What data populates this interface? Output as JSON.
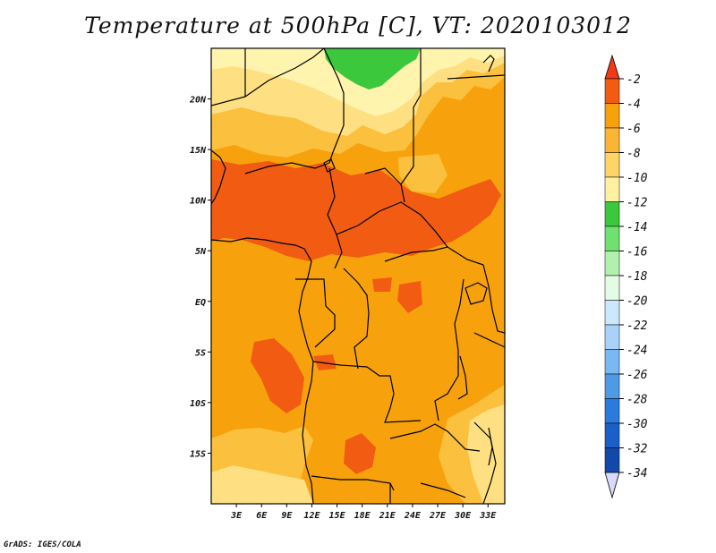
{
  "title": "Temperature at 500hPa [C], VT: 2020103012",
  "credit": "GrADS: IGES/COLA",
  "map": {
    "variable": "Temperature at 500hPa",
    "units": "C",
    "valid_time": "2020103012",
    "lon_range": [
      0,
      35
    ],
    "lat_range": [
      -20,
      25
    ],
    "x_ticks": [
      {
        "lon": 3,
        "label": "3E"
      },
      {
        "lon": 6,
        "label": "6E"
      },
      {
        "lon": 9,
        "label": "9E"
      },
      {
        "lon": 12,
        "label": "12E"
      },
      {
        "lon": 15,
        "label": "15E"
      },
      {
        "lon": 18,
        "label": "18E"
      },
      {
        "lon": 21,
        "label": "21E"
      },
      {
        "lon": 24,
        "label": "24E"
      },
      {
        "lon": 27,
        "label": "27E"
      },
      {
        "lon": 30,
        "label": "30E"
      },
      {
        "lon": 33,
        "label": "33E"
      }
    ],
    "y_ticks": [
      {
        "lat": 20,
        "label": "20N"
      },
      {
        "lat": 15,
        "label": "15N"
      },
      {
        "lat": 10,
        "label": "10N"
      },
      {
        "lat": 5,
        "label": "5N"
      },
      {
        "lat": 0,
        "label": "EQ"
      },
      {
        "lat": -5,
        "label": "5S"
      },
      {
        "lat": -10,
        "label": "10S"
      },
      {
        "lat": -15,
        "label": "15S"
      }
    ],
    "colors": {
      "c_above_-4": "#f15c12",
      "c_-6_-4": "#f7a20c",
      "c_-8_-6": "#fbc03e",
      "c_-10_-8": "#fee083",
      "c_-12_-10": "#fff4ad",
      "c_-14_-12": "#3cc83c"
    }
  },
  "colorbar": {
    "levels": [
      "-2",
      "-4",
      "-6",
      "-8",
      "-10",
      "-12",
      "-14",
      "-16",
      "-18",
      "-20",
      "-22",
      "-24",
      "-26",
      "-28",
      "-30",
      "-32",
      "-34"
    ],
    "colors": [
      "#f15c12",
      "#f7a20c",
      "#fbb534",
      "#fdd567",
      "#fff1a4",
      "#3cc83c",
      "#70e070",
      "#b2f0ae",
      "#e4fbe6",
      "#cde8fa",
      "#a8d2f7",
      "#7ab8f1",
      "#4e9ae6",
      "#2a7bdb",
      "#1b60c8",
      "#1248aa",
      "#0a1f78"
    ],
    "top_arrow_color": "#f03a18",
    "bottom_arrow_color": "#d9d9fb"
  }
}
